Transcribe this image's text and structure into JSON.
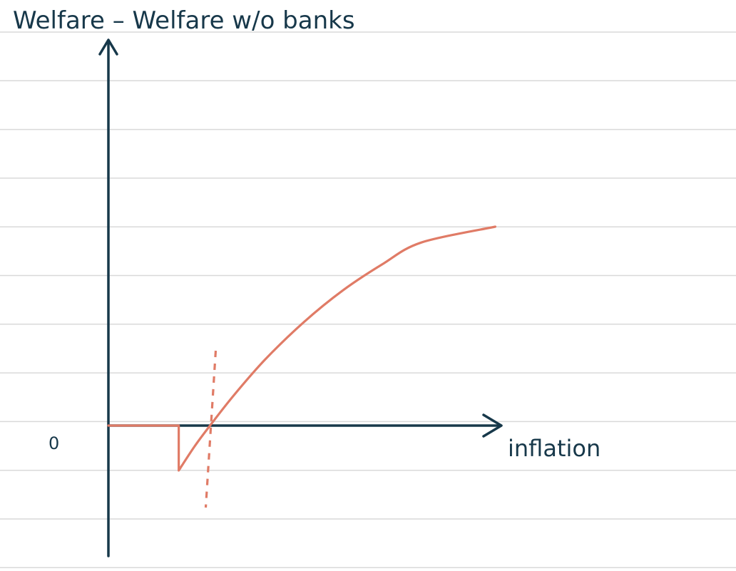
{
  "chart_data": {
    "type": "line",
    "ylabel": "Welfare – Welfare w/o banks",
    "xlabel": "inflation",
    "ytick_labels": [
      "0"
    ],
    "threshold_x": 0.26,
    "xlim": [
      0,
      1
    ],
    "ylim": [
      -0.35,
      1
    ],
    "grid": false,
    "series": [
      {
        "color": "#e07b66",
        "points": [
          [
            0.0,
            0.0
          ],
          [
            0.18,
            0.0
          ],
          [
            0.18,
            -0.32
          ],
          [
            0.22,
            -0.15
          ],
          [
            0.26,
            0.0
          ],
          [
            0.32,
            0.15
          ],
          [
            0.4,
            0.33
          ],
          [
            0.5,
            0.52
          ],
          [
            0.6,
            0.68
          ],
          [
            0.7,
            0.81
          ],
          [
            0.8,
            0.92
          ],
          [
            0.99,
            1.0
          ]
        ]
      }
    ]
  }
}
